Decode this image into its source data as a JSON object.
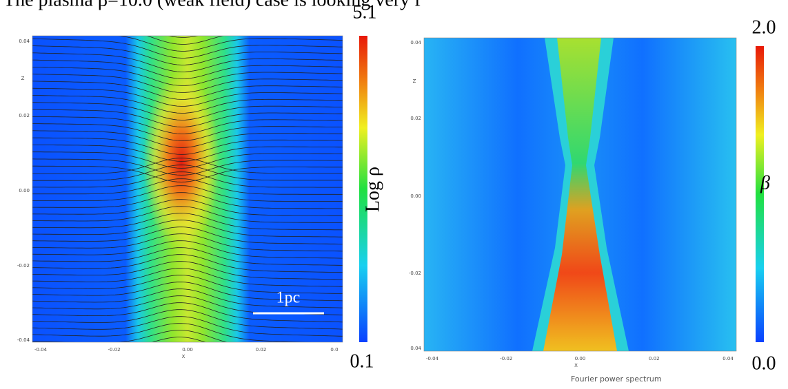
{
  "title": "The plasma β=10.0 (weak field) case is looking very f",
  "panels": [
    {
      "xticks": [
        "-0.04",
        "-0.02",
        "0.00",
        "0.02",
        "0.0"
      ],
      "xlabel": "X",
      "yticks": [
        "0.04",
        "0.02",
        "0.00",
        "-0.02",
        "-0.04"
      ],
      "ylabel": "Z",
      "scale_bar": "1pc",
      "colorbar": {
        "max": "5.1",
        "min": "0.1",
        "label": "Log ρ"
      }
    },
    {
      "xticks": [
        "-0.04",
        "-0.02",
        "0.00",
        "0.02",
        "0.04"
      ],
      "xlabel": "X",
      "yticks": [
        "0.04",
        "0.02",
        "0.00",
        "-0.02",
        "0.04"
      ],
      "ylabel": "Z",
      "colorbar": {
        "max": "2.0",
        "min": "0.0",
        "label": "β"
      }
    }
  ],
  "caption": "Fourier power spectrum"
}
